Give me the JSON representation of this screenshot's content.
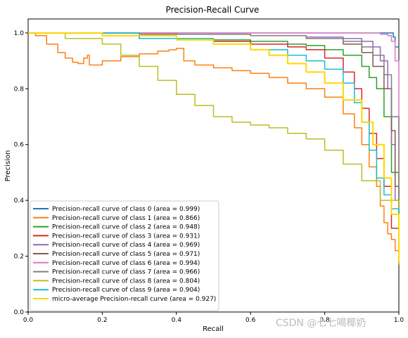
{
  "chart_data": {
    "type": "line",
    "title": "Precision-Recall Curve",
    "xlabel": "Recall",
    "ylabel": "Precision",
    "xlim": [
      0.0,
      1.0
    ],
    "ylim": [
      0.0,
      1.05
    ],
    "xticks": [
      "0.0",
      "0.2",
      "0.4",
      "0.6",
      "0.8",
      "1.0"
    ],
    "yticks": [
      "0.0",
      "0.2",
      "0.4",
      "0.6",
      "0.8",
      "1.0"
    ],
    "grid": false,
    "legend_position": "lower-left",
    "series": [
      {
        "name": "Precision-recall curve of class 0 (area = 0.999)",
        "color": "#1f77b4",
        "x": [
          0,
          0.2,
          0.5,
          0.8,
          0.9,
          0.97,
          0.985,
          0.99,
          1.0
        ],
        "y": [
          1.0,
          1.0,
          1.0,
          1.0,
          1.0,
          1.0,
          0.985,
          0.95,
          0.95
        ]
      },
      {
        "name": "Precision-recall curve of class 1 (area = 0.866)",
        "color": "#ff7f0e",
        "x": [
          0,
          0.02,
          0.05,
          0.08,
          0.1,
          0.12,
          0.135,
          0.15,
          0.16,
          0.165,
          0.2,
          0.25,
          0.3,
          0.35,
          0.38,
          0.4,
          0.42,
          0.45,
          0.5,
          0.55,
          0.6,
          0.65,
          0.7,
          0.75,
          0.8,
          0.85,
          0.88,
          0.9,
          0.92,
          0.94,
          0.95,
          0.96,
          0.97,
          0.98,
          0.99,
          1.0
        ],
        "y": [
          1.0,
          0.99,
          0.96,
          0.93,
          0.91,
          0.895,
          0.89,
          0.91,
          0.92,
          0.885,
          0.9,
          0.915,
          0.925,
          0.935,
          0.94,
          0.945,
          0.9,
          0.885,
          0.875,
          0.865,
          0.855,
          0.84,
          0.82,
          0.8,
          0.77,
          0.71,
          0.66,
          0.6,
          0.52,
          0.45,
          0.38,
          0.32,
          0.28,
          0.26,
          0.22,
          0.17
        ]
      },
      {
        "name": "Precision-recall curve of class 2 (area = 0.948)",
        "color": "#2ca02c",
        "x": [
          0,
          0.3,
          0.5,
          0.6,
          0.7,
          0.75,
          0.8,
          0.85,
          0.9,
          0.92,
          0.94,
          0.96,
          0.98,
          1.0
        ],
        "y": [
          1.0,
          0.98,
          0.975,
          0.97,
          0.96,
          0.955,
          0.94,
          0.92,
          0.88,
          0.84,
          0.8,
          0.7,
          0.5,
          0.18
        ]
      },
      {
        "name": "Precision-recall curve of class 3 (area = 0.931)",
        "color": "#d62728",
        "x": [
          0,
          0.3,
          0.5,
          0.6,
          0.7,
          0.75,
          0.8,
          0.85,
          0.88,
          0.9,
          0.92,
          0.94,
          0.96,
          0.98,
          1.0
        ],
        "y": [
          1.0,
          0.98,
          0.97,
          0.96,
          0.95,
          0.94,
          0.91,
          0.86,
          0.8,
          0.73,
          0.64,
          0.55,
          0.45,
          0.3,
          0.2
        ]
      },
      {
        "name": "Precision-recall curve of class 4 (area = 0.969)",
        "color": "#9467bd",
        "x": [
          0,
          0.4,
          0.6,
          0.75,
          0.85,
          0.9,
          0.93,
          0.95,
          0.97,
          0.98,
          0.99,
          1.0
        ],
        "y": [
          1.0,
          0.995,
          0.99,
          0.985,
          0.98,
          0.97,
          0.95,
          0.9,
          0.8,
          0.6,
          0.4,
          0.25
        ]
      },
      {
        "name": "Precision-recall curve of class 5 (area = 0.971)",
        "color": "#8c564b",
        "x": [
          0,
          0.4,
          0.6,
          0.75,
          0.85,
          0.9,
          0.93,
          0.96,
          0.98,
          0.99,
          1.0
        ],
        "y": [
          1.0,
          0.995,
          0.99,
          0.98,
          0.96,
          0.93,
          0.88,
          0.8,
          0.65,
          0.45,
          0.2
        ]
      },
      {
        "name": "Precision-recall curve of class 6 (area = 0.994)",
        "color": "#e377c2",
        "x": [
          0,
          0.5,
          0.8,
          0.9,
          0.95,
          0.97,
          0.98,
          0.99,
          1.0
        ],
        "y": [
          1.0,
          1.0,
          1.0,
          1.0,
          0.995,
          0.99,
          0.97,
          0.9,
          0.5
        ]
      },
      {
        "name": "Precision-recall curve of class 7 (area = 0.966)",
        "color": "#7f7f7f",
        "x": [
          0,
          0.3,
          0.6,
          0.75,
          0.85,
          0.9,
          0.93,
          0.96,
          0.98,
          1.0
        ],
        "y": [
          1.0,
          0.995,
          0.99,
          0.98,
          0.97,
          0.95,
          0.92,
          0.85,
          0.7,
          0.2
        ]
      },
      {
        "name": "Precision-recall curve of class 8 (area = 0.804)",
        "color": "#bcbd22",
        "x": [
          0,
          0.1,
          0.2,
          0.25,
          0.3,
          0.35,
          0.4,
          0.45,
          0.5,
          0.55,
          0.6,
          0.65,
          0.7,
          0.75,
          0.8,
          0.85,
          0.9,
          0.95,
          1.0
        ],
        "y": [
          1.0,
          0.98,
          0.96,
          0.92,
          0.88,
          0.83,
          0.78,
          0.74,
          0.7,
          0.68,
          0.67,
          0.66,
          0.64,
          0.62,
          0.58,
          0.53,
          0.47,
          0.4,
          0.3
        ]
      },
      {
        "name": "Precision-recall curve of class 9 (area = 0.904)",
        "color": "#17becf",
        "x": [
          0,
          0.3,
          0.5,
          0.6,
          0.7,
          0.75,
          0.8,
          0.85,
          0.88,
          0.9,
          0.92,
          0.94,
          0.96,
          0.98,
          1.0
        ],
        "y": [
          1.0,
          0.98,
          0.96,
          0.94,
          0.92,
          0.9,
          0.87,
          0.82,
          0.75,
          0.68,
          0.58,
          0.48,
          0.42,
          0.37,
          0.2
        ]
      },
      {
        "name": "micro-average Precision-recall curve (area = 0.927)",
        "color": "#ffd700",
        "x": [
          0,
          0.2,
          0.4,
          0.5,
          0.6,
          0.65,
          0.7,
          0.75,
          0.8,
          0.85,
          0.9,
          0.93,
          0.96,
          0.98,
          1.0
        ],
        "y": [
          1.0,
          0.99,
          0.975,
          0.96,
          0.94,
          0.92,
          0.89,
          0.86,
          0.82,
          0.76,
          0.68,
          0.6,
          0.48,
          0.35,
          0.18
        ]
      }
    ]
  },
  "watermark": "CSDN @七七喝椰奶"
}
